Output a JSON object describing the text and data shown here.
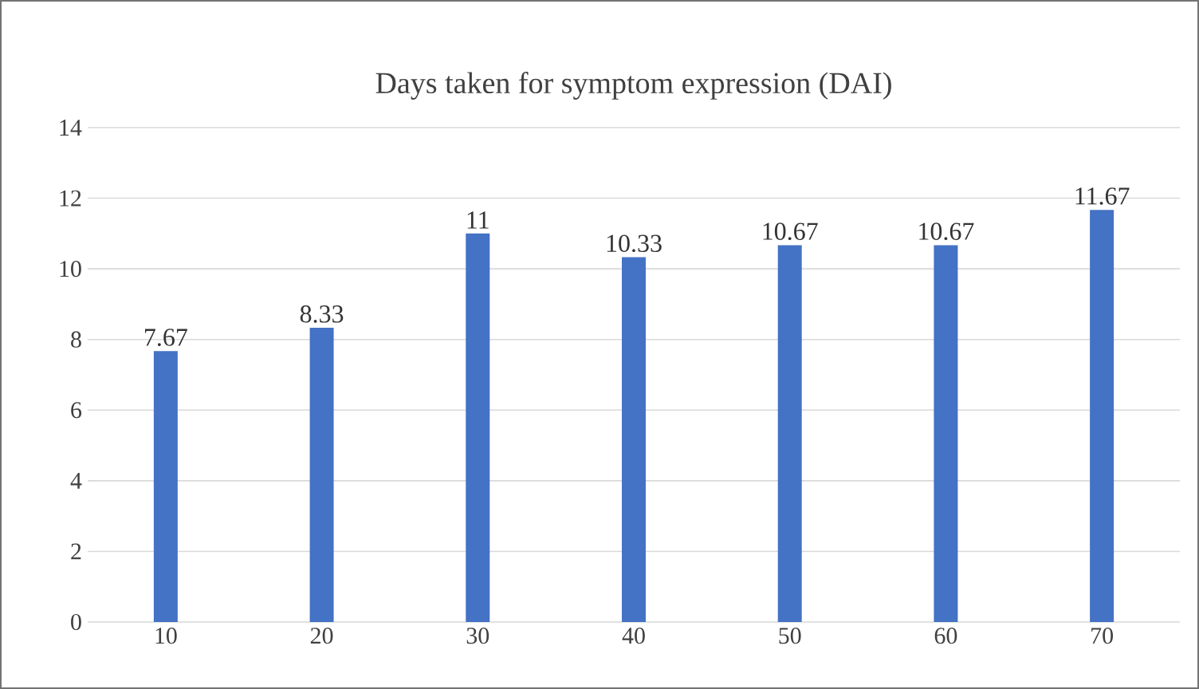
{
  "chart_data": {
    "type": "bar",
    "title": "Days taken for symptom expression (DAI)",
    "categories": [
      "10",
      "20",
      "30",
      "40",
      "50",
      "60",
      "70"
    ],
    "values": [
      7.67,
      8.33,
      11,
      10.33,
      10.67,
      10.67,
      11.67
    ],
    "color": "#4472c4",
    "ylim": [
      0,
      14
    ],
    "yticks": [
      0,
      2,
      4,
      6,
      8,
      10,
      12,
      14
    ],
    "grid": "y",
    "data_labels": true
  }
}
